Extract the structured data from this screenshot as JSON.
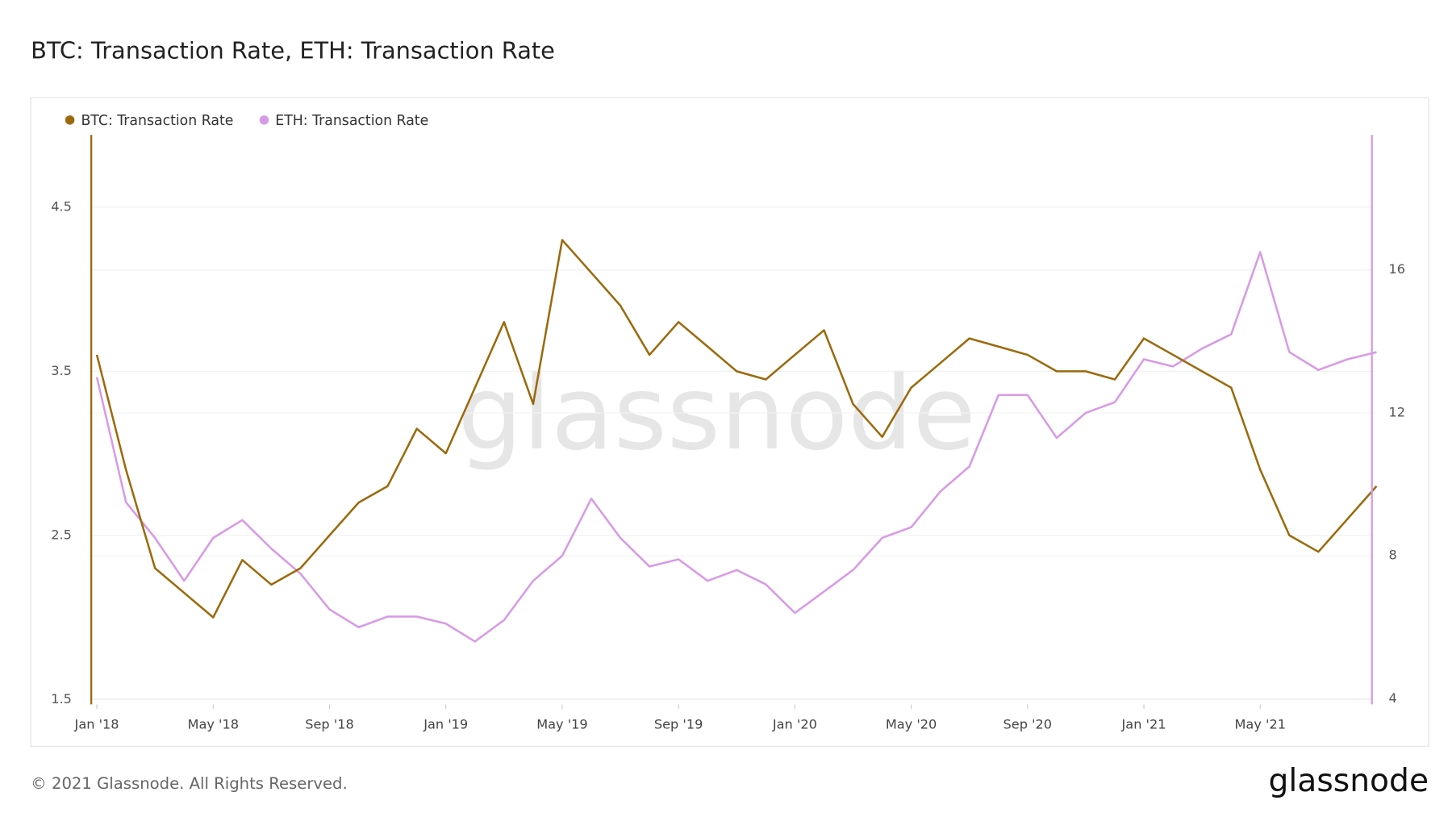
{
  "chart_data": {
    "type": "line",
    "title": "BTC: Transaction Rate, ETH: Transaction Rate",
    "watermark": "glassnode",
    "x": [
      "2018-01",
      "2018-02",
      "2018-03",
      "2018-04",
      "2018-05",
      "2018-06",
      "2018-07",
      "2018-08",
      "2018-09",
      "2018-10",
      "2018-11",
      "2018-12",
      "2019-01",
      "2019-02",
      "2019-03",
      "2019-04",
      "2019-05",
      "2019-06",
      "2019-07",
      "2019-08",
      "2019-09",
      "2019-10",
      "2019-11",
      "2019-12",
      "2020-01",
      "2020-02",
      "2020-03",
      "2020-04",
      "2020-05",
      "2020-06",
      "2020-07",
      "2020-08",
      "2020-09",
      "2020-10",
      "2020-11",
      "2020-12",
      "2021-01",
      "2021-02",
      "2021-03",
      "2021-04",
      "2021-05",
      "2021-06",
      "2021-07",
      "2021-08",
      "2021-09"
    ],
    "series": [
      {
        "name": "BTC: Transaction Rate",
        "color": "#9b6a0c",
        "axis": "y",
        "values": [
          3.6,
          2.9,
          2.3,
          2.15,
          2.0,
          2.35,
          2.2,
          2.3,
          2.5,
          2.7,
          2.8,
          3.15,
          3.0,
          3.4,
          3.8,
          3.3,
          4.3,
          4.1,
          3.9,
          3.6,
          3.8,
          3.65,
          3.5,
          3.45,
          3.6,
          3.75,
          3.3,
          3.1,
          3.4,
          3.55,
          3.7,
          3.65,
          3.6,
          3.5,
          3.5,
          3.45,
          3.7,
          3.6,
          3.5,
          3.4,
          2.9,
          2.5,
          2.4,
          2.6,
          2.8
        ]
      },
      {
        "name": "ETH: Transaction Rate",
        "color": "#d89ae6",
        "axis": "y2",
        "values": [
          13,
          9.5,
          8.5,
          7.3,
          8.5,
          9.0,
          8.2,
          7.5,
          6.5,
          6.0,
          6.3,
          6.3,
          6.1,
          5.6,
          6.2,
          7.3,
          8.0,
          9.6,
          8.5,
          7.7,
          7.9,
          7.3,
          7.6,
          7.2,
          6.4,
          7.0,
          7.6,
          8.5,
          8.8,
          9.8,
          10.5,
          12.5,
          12.5,
          11.3,
          12.0,
          12.3,
          13.5,
          13.3,
          13.8,
          14.2,
          16.5,
          13.7,
          13.2,
          13.5,
          13.7
        ]
      }
    ],
    "xlim": [
      "2018-01",
      "2021-09"
    ],
    "xticks": [
      {
        "value": "2018-01",
        "label": "Jan '18"
      },
      {
        "value": "2018-05",
        "label": "May '18"
      },
      {
        "value": "2018-09",
        "label": "Sep '18"
      },
      {
        "value": "2019-01",
        "label": "Jan '19"
      },
      {
        "value": "2019-05",
        "label": "May '19"
      },
      {
        "value": "2019-09",
        "label": "Sep '19"
      },
      {
        "value": "2020-01",
        "label": "Jan '20"
      },
      {
        "value": "2020-05",
        "label": "May '20"
      },
      {
        "value": "2020-09",
        "label": "Sep '20"
      },
      {
        "value": "2021-01",
        "label": "Jan '21"
      },
      {
        "value": "2021-05",
        "label": "May '21"
      }
    ],
    "ylim": [
      1.47,
      4.94
    ],
    "yticks": [
      1.5,
      2.5,
      3.5,
      4.5
    ],
    "y2lim": [
      3.84,
      19.78
    ],
    "y2ticks": [
      4,
      8,
      12,
      16
    ],
    "grid": true,
    "legend": "top-left"
  },
  "copyright": "© 2021 Glassnode. All Rights Reserved.",
  "brand": "glassnode"
}
